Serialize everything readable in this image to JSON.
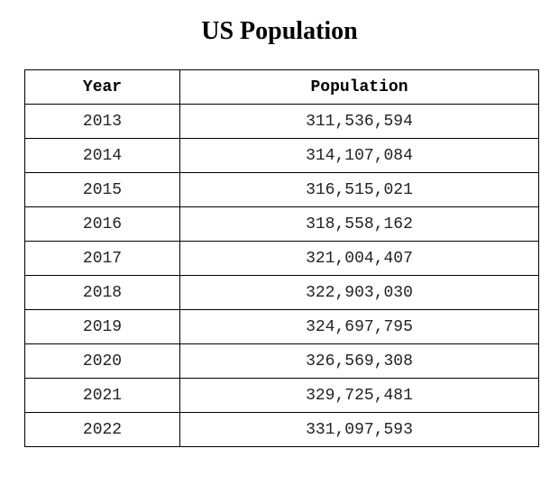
{
  "title": "US Population",
  "table": {
    "headers": [
      "Year",
      "Population"
    ],
    "rows": [
      {
        "year": "2013",
        "population": "311,536,594"
      },
      {
        "year": "2014",
        "population": "314,107,084"
      },
      {
        "year": "2015",
        "population": "316,515,021"
      },
      {
        "year": "2016",
        "population": "318,558,162"
      },
      {
        "year": "2017",
        "population": "321,004,407"
      },
      {
        "year": "2018",
        "population": "322,903,030"
      },
      {
        "year": "2019",
        "population": "324,697,795"
      },
      {
        "year": "2020",
        "population": "326,569,308"
      },
      {
        "year": "2021",
        "population": "329,725,481"
      },
      {
        "year": "2022",
        "population": "331,097,593"
      }
    ]
  }
}
